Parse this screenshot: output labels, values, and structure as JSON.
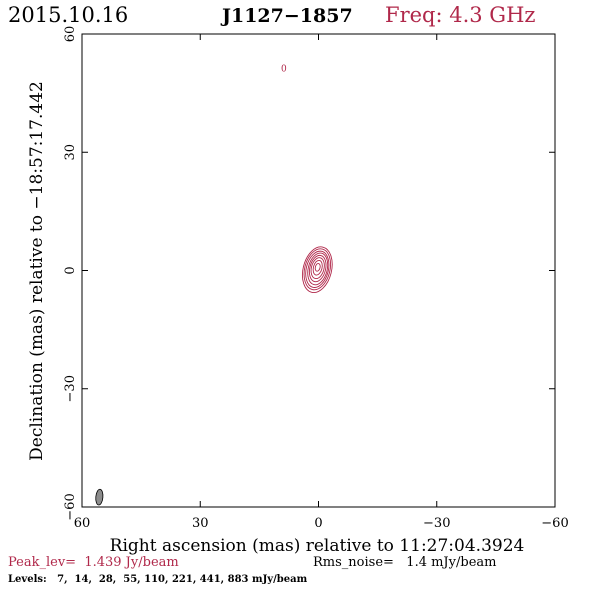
{
  "header": {
    "date": "2015.10.16",
    "source": "J1127−1857",
    "freq": "Freq: 4.3 GHz"
  },
  "footer": {
    "peak": "Peak_lev=  1.439 Jy/beam",
    "rms": "Rms_noise=   1.4 mJy/beam",
    "levels": "Levels:   7,  14,  28,  55, 110, 221, 441, 883 mJy/beam"
  },
  "colors": {
    "contour": "#b0284a",
    "beam_fill": "#8c8c8c",
    "axis": "#000000"
  },
  "chart_data": {
    "type": "contour",
    "title": "J1127−1857",
    "xlabel": "Right ascension (mas) relative to 11:27:04.3924",
    "ylabel": "Declination (mas) relative to −18:57:17.442",
    "xlim": [
      60,
      -60
    ],
    "ylim": [
      -60,
      60
    ],
    "xticks": [
      60,
      30,
      0,
      -30,
      -60
    ],
    "yticks": [
      60,
      30,
      0,
      -30,
      -60
    ],
    "xtick_labels": [
      "60",
      "30",
      "0",
      "−30",
      "−60"
    ],
    "ytick_labels": [
      "60",
      "30",
      "0",
      "−30",
      "−60"
    ],
    "peak_jy_per_beam": 1.439,
    "rms_mjy_per_beam": 1.4,
    "levels_mjy_per_beam": [
      7,
      14,
      28,
      55,
      110,
      221,
      441,
      883
    ],
    "source_center": [
      0.3,
      0
    ],
    "contours": [
      {
        "level": 7,
        "center": [
          0.3,
          0.2
        ],
        "semi_major": 5.9,
        "semi_minor": 3.6,
        "pa_deg": 14
      },
      {
        "level": 14,
        "center": [
          0.3,
          0.3
        ],
        "semi_major": 5.3,
        "semi_minor": 3.2,
        "pa_deg": 14
      },
      {
        "level": 28,
        "center": [
          0.3,
          0.3
        ],
        "semi_major": 4.7,
        "semi_minor": 2.8,
        "pa_deg": 14
      },
      {
        "level": 55,
        "center": [
          0.2,
          0.4
        ],
        "semi_major": 4.1,
        "semi_minor": 2.4,
        "pa_deg": 14
      },
      {
        "level": 110,
        "center": [
          0.2,
          0.5
        ],
        "semi_major": 3.4,
        "semi_minor": 2.0,
        "pa_deg": 14
      },
      {
        "level": 221,
        "center": [
          0.2,
          0.6
        ],
        "semi_major": 2.7,
        "semi_minor": 1.6,
        "pa_deg": 14
      },
      {
        "level": 441,
        "center": [
          0.2,
          0.7
        ],
        "semi_major": 1.9,
        "semi_minor": 1.1,
        "pa_deg": 14
      },
      {
        "level": 883,
        "center": [
          0.2,
          0.8
        ],
        "semi_major": 1.0,
        "semi_minor": 0.6,
        "pa_deg": 14
      }
    ],
    "annotation": {
      "text": "0",
      "x": 8.8,
      "y": 50.5
    },
    "beam": {
      "center": [
        55.6,
        -57.5
      ],
      "semi_major": 2.0,
      "semi_minor": 0.9,
      "pa_deg": 5
    }
  }
}
